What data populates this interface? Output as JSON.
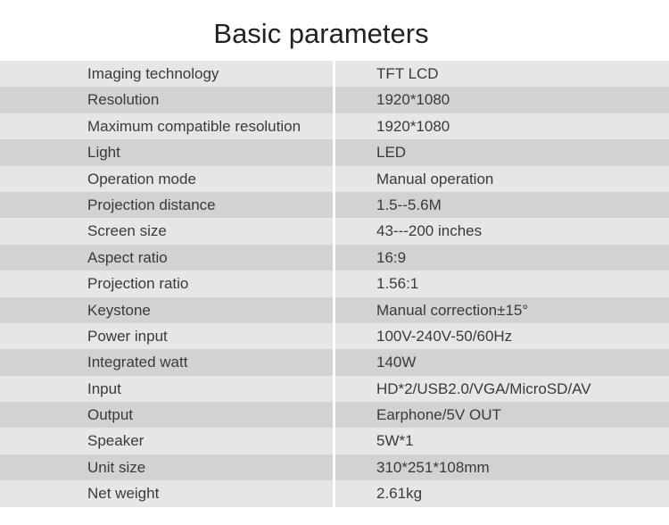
{
  "title": "Basic parameters",
  "rows": [
    {
      "label": "Imaging technology",
      "value": "TFT LCD"
    },
    {
      "label": "Resolution",
      "value": "1920*1080"
    },
    {
      "label": "Maximum compatible resolution",
      "value": "1920*1080"
    },
    {
      "label": "Light",
      "value": "LED"
    },
    {
      "label": "Operation mode",
      "value": "Manual operation"
    },
    {
      "label": "Projection distance",
      "value": "1.5--5.6M"
    },
    {
      "label": "Screen size",
      "value": "43---200 inches"
    },
    {
      "label": "Aspect ratio",
      "value": "16:9"
    },
    {
      "label": "Projection ratio",
      "value": "1.56:1"
    },
    {
      "label": "Keystone",
      "value": "Manual correction±15°"
    },
    {
      "label": "Power input",
      "value": "100V-240V-50/60Hz"
    },
    {
      "label": "Integrated watt",
      "value": "140W"
    },
    {
      "label": "Input",
      "value": "HD*2/USB2.0/VGA/MicroSD/AV"
    },
    {
      "label": "Output",
      "value": "Earphone/5V OUT"
    },
    {
      "label": "Speaker",
      "value": "5W*1"
    },
    {
      "label": "Unit size",
      "value": "310*251*108mm"
    },
    {
      "label": "Net weight",
      "value": "2.61kg"
    }
  ]
}
